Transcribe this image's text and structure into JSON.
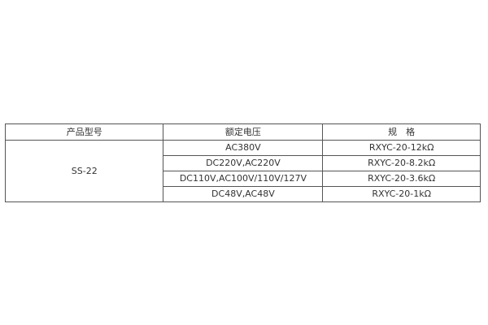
{
  "table": {
    "headers": [
      "产品型号",
      "额定电压",
      "规　格"
    ],
    "model": "SS-22",
    "rows": [
      {
        "voltage": "AC380V",
        "spec": "RXYC-20-12kΩ"
      },
      {
        "voltage": "DC220V,AC220V",
        "spec": "RXYC-20-8.2kΩ"
      },
      {
        "voltage": "DC110V,AC100V/110V/127V",
        "spec": "RXYC-20-3.6kΩ"
      },
      {
        "voltage": "DC48V,AC48V",
        "spec": "RXYC-20-1kΩ"
      }
    ]
  }
}
